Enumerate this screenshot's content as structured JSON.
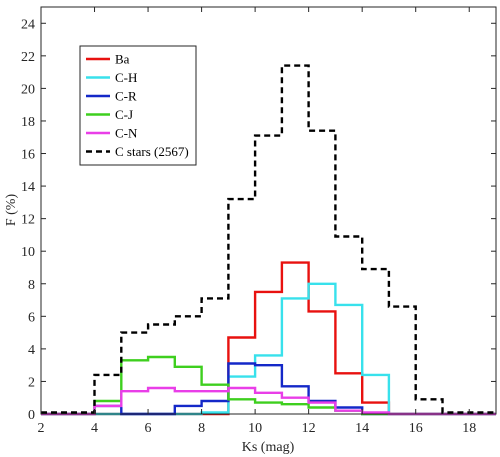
{
  "chart_data": {
    "type": "histogram-step",
    "title": "",
    "xlabel": "Ks (mag)",
    "ylabel": "F (%)",
    "xlim": [
      2,
      19
    ],
    "ylim": [
      0,
      25
    ],
    "xticks": [
      "2",
      "4",
      "6",
      "8",
      "10",
      "12",
      "14",
      "16",
      "18"
    ],
    "yticks": [
      "0",
      "2",
      "4",
      "6",
      "8",
      "10",
      "12",
      "14",
      "16",
      "18",
      "20",
      "22",
      "24"
    ],
    "grid": false,
    "legend_position": "top-left",
    "bin_edges": [
      2,
      3,
      4,
      5,
      6,
      7,
      8,
      9,
      10,
      11,
      12,
      13,
      14,
      15,
      16,
      17,
      18,
      19
    ],
    "series": [
      {
        "name": "Ba",
        "color": "#e8110f",
        "style": "solid",
        "values": [
          0,
          0,
          0,
          0,
          0,
          0,
          0,
          4.7,
          7.5,
          9.3,
          6.3,
          2.5,
          0.7,
          0,
          0,
          0,
          0
        ]
      },
      {
        "name": "C-H",
        "color": "#38e1ec",
        "style": "solid",
        "values": [
          0,
          0,
          0,
          0,
          0,
          0,
          0.1,
          2.3,
          3.6,
          7.1,
          8.0,
          6.7,
          2.4,
          0,
          0,
          0,
          0
        ]
      },
      {
        "name": "C-R",
        "color": "#1428c8",
        "style": "solid",
        "values": [
          0,
          0,
          0.5,
          0,
          0,
          0.5,
          0.8,
          3.1,
          3.0,
          1.7,
          0.8,
          0.4,
          0,
          0,
          0,
          0,
          0
        ]
      },
      {
        "name": "C-J",
        "color": "#3ecf1e",
        "style": "solid",
        "values": [
          0,
          0,
          0.8,
          3.3,
          3.5,
          2.9,
          1.8,
          0.9,
          0.7,
          0.6,
          0.4,
          0.2,
          0,
          0,
          0,
          0,
          0
        ]
      },
      {
        "name": "C-N",
        "color": "#e93ee8",
        "style": "solid",
        "values": [
          0,
          0,
          0.5,
          1.4,
          1.6,
          1.4,
          1.4,
          1.6,
          1.3,
          1.0,
          0.7,
          0.2,
          0.1,
          0,
          0,
          0,
          0
        ]
      },
      {
        "name": "C stars (2567)",
        "color": "#000000",
        "style": "dashed",
        "values": [
          0.1,
          0.1,
          2.4,
          5.0,
          5.5,
          6.0,
          7.1,
          13.2,
          17.1,
          21.4,
          17.4,
          10.9,
          8.9,
          6.6,
          0.9,
          0.1,
          0.1
        ]
      }
    ]
  }
}
